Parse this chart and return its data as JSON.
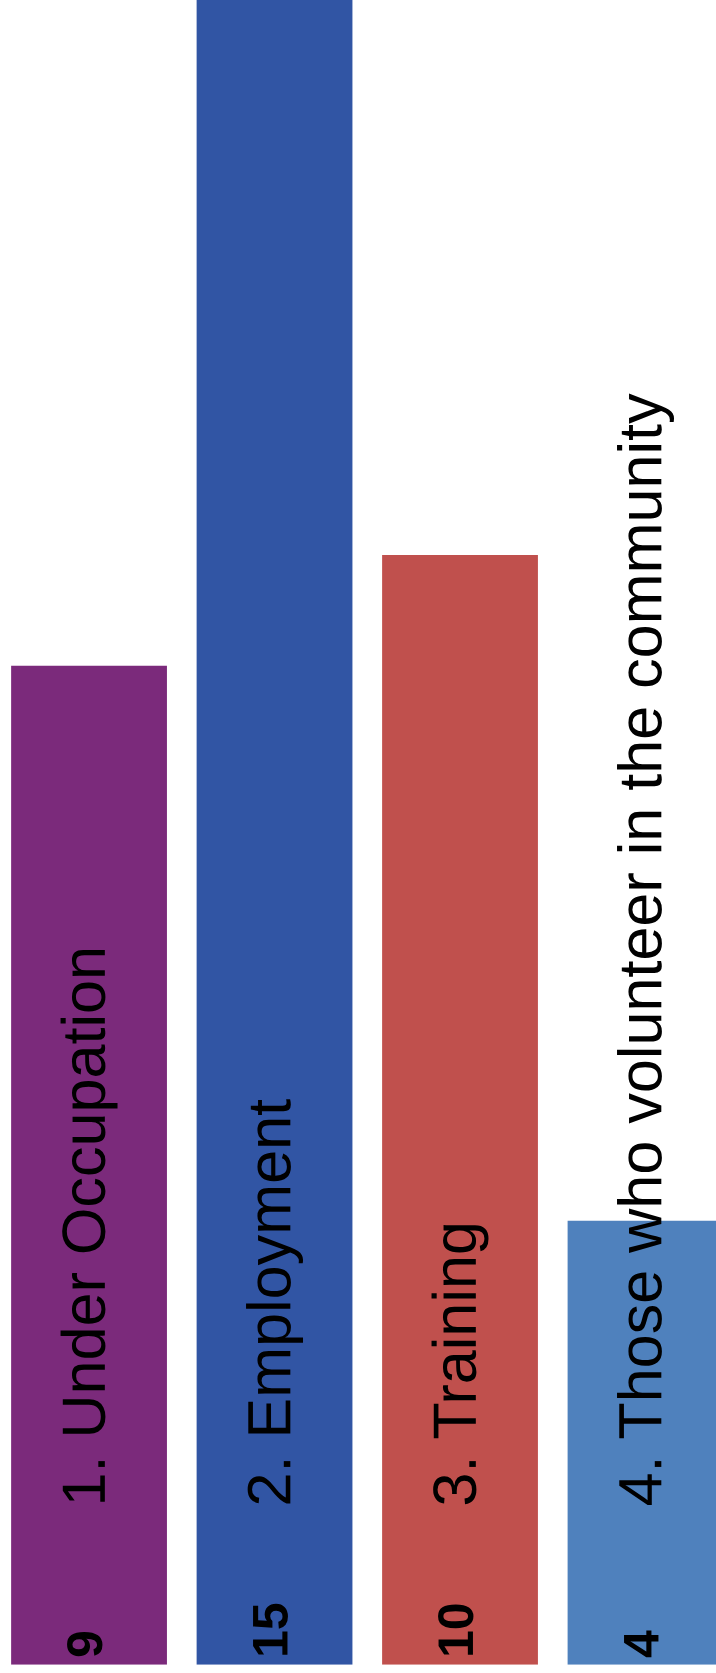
{
  "chart_data": {
    "type": "bar",
    "categories": [
      "1. Under Occupation",
      "2. Employment",
      "3. Training",
      "4. Those who volunteer in the community"
    ],
    "values": [
      9,
      15,
      10,
      4
    ],
    "colors": [
      "#7b2a7b",
      "#3155a4",
      "#c0504d",
      "#4f81bd"
    ],
    "data_labels": true
  }
}
